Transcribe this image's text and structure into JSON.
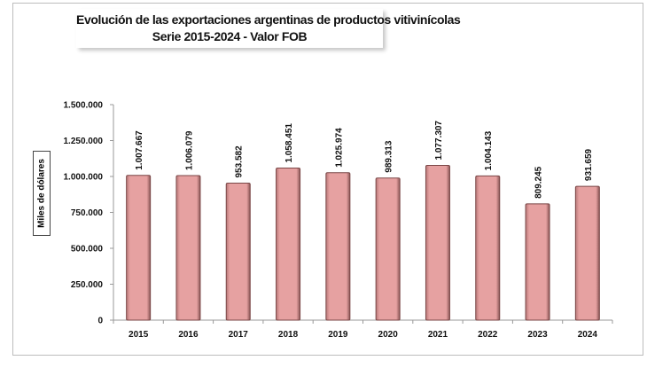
{
  "chart_data": {
    "type": "bar",
    "title": "Evolución de las exportaciones  argentinas de productos vitivinícolas",
    "subtitle": "Serie 2015-2024 - Valor FOB",
    "xlabel": "",
    "ylabel": "Miles de dólares",
    "ylim": [
      0,
      1500000
    ],
    "yticks": [
      0,
      250000,
      500000,
      750000,
      1000000,
      1250000,
      1500000
    ],
    "ytick_labels": [
      "0",
      "250.000",
      "500.000",
      "750.000",
      "1.000.000",
      "1.250.000",
      "1.500.000"
    ],
    "categories": [
      "2015",
      "2016",
      "2017",
      "2018",
      "2019",
      "2020",
      "2021",
      "2022",
      "2023",
      "2024"
    ],
    "values": [
      1007667,
      1006079,
      953582,
      1058451,
      1025974,
      989313,
      1077307,
      1004143,
      809245,
      931659
    ],
    "data_labels": [
      "1.007.667",
      "1.006.079",
      "953.582",
      "1.058.451",
      "1.025.974",
      "989.313",
      "1.077.307",
      "1.004.143",
      "809.245",
      "931.659"
    ],
    "grid": false,
    "colors": {
      "bar": "#e6a1a1",
      "bar_edge": "#7a4646"
    }
  }
}
